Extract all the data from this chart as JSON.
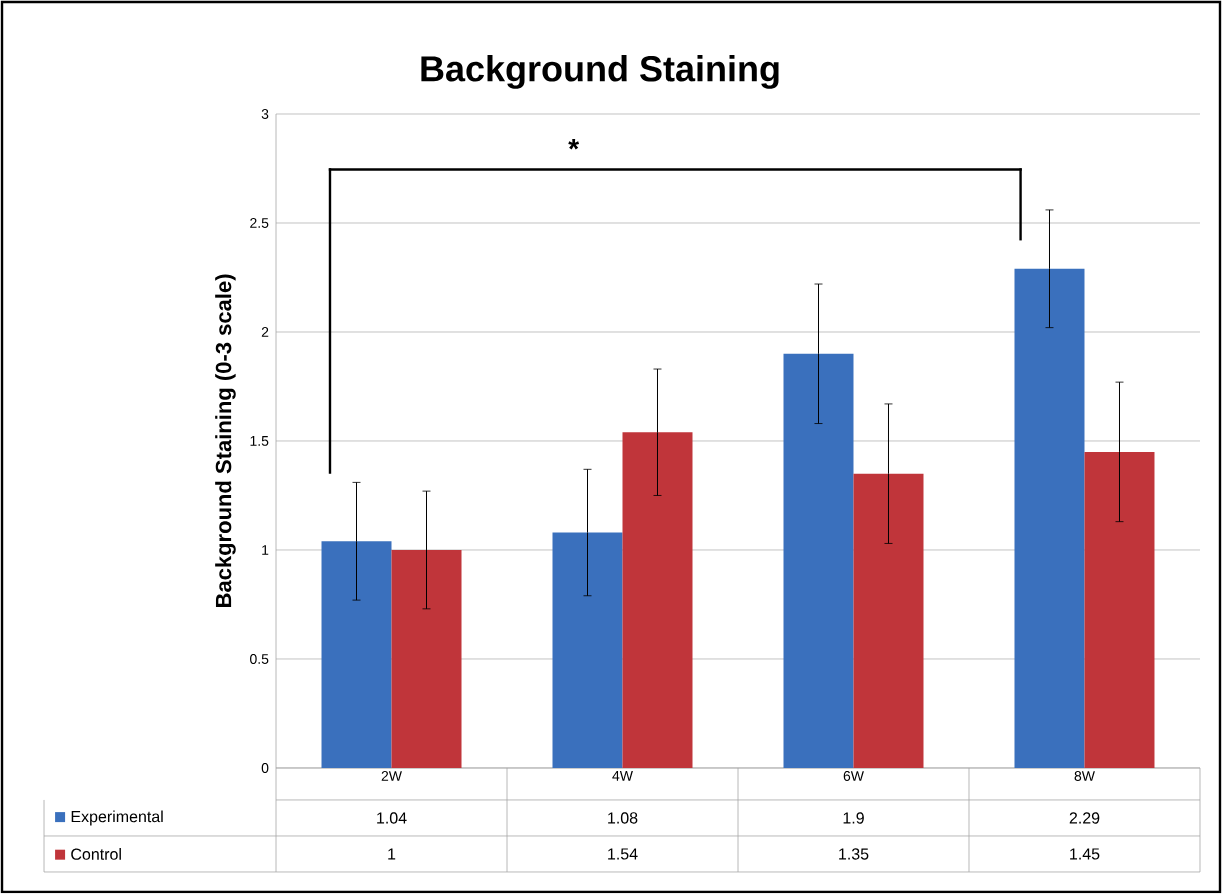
{
  "chart_data": {
    "type": "bar",
    "title": "Background Staining",
    "ylabel": "Background Staining (0-3 scale)",
    "categories": [
      "2W",
      "4W",
      "6W",
      "8W"
    ],
    "series": [
      {
        "name": "Experimental",
        "color": "#3a70bd",
        "values": [
          1.04,
          1.08,
          1.9,
          2.29
        ],
        "errors": [
          0.27,
          0.29,
          0.32,
          0.27
        ]
      },
      {
        "name": "Control",
        "color": "#c0353a",
        "values": [
          1,
          1.54,
          1.35,
          1.45
        ],
        "errors": [
          0.27,
          0.29,
          0.32,
          0.32
        ]
      }
    ],
    "ylim": [
      0,
      3
    ],
    "yticks": [
      0,
      0.5,
      1,
      1.5,
      2,
      2.5,
      3
    ],
    "grid": "y",
    "legend": "bottom",
    "data_labels": true,
    "annotations": [
      "*"
    ]
  }
}
